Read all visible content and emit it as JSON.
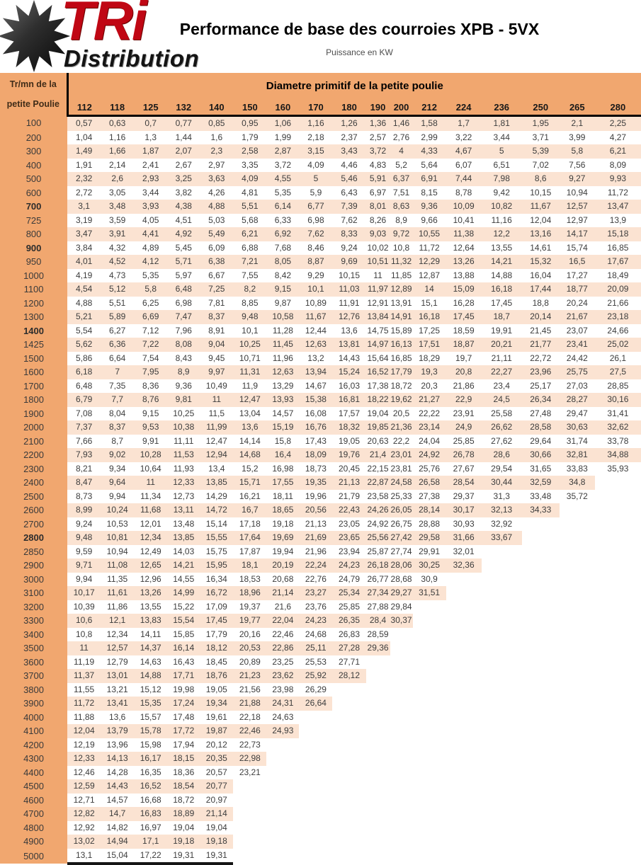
{
  "logo": {
    "brand": "TRi",
    "subtitle": "Distribution"
  },
  "header": {
    "title": "Performance de base des courroies XPB - 5VX",
    "subtitle": "Puissance en KW"
  },
  "colors": {
    "header_orange": "#F1A76F",
    "stripe": "#FBE3D2",
    "logo_red": "#C00714"
  },
  "table": {
    "corner_label_line1": "Tr/mn de la",
    "corner_label_line2": "petite Poulie",
    "group_header": "Diametre primitif  de la petite poulie",
    "columns": [
      "112",
      "118",
      "125",
      "132",
      "140",
      "150",
      "160",
      "170",
      "180",
      "190",
      "200",
      "212",
      "224",
      "236",
      "250",
      "265",
      "280"
    ],
    "rows": [
      {
        "rpm": "100",
        "values": [
          "0,57",
          "0,63",
          "0,7",
          "0,77",
          "0,85",
          "0,95",
          "1,06",
          "1,16",
          "1,26",
          "1,36",
          "1,46",
          "1,58",
          "1,7",
          "1,81",
          "1,95",
          "2,1",
          "2,25"
        ]
      },
      {
        "rpm": "200",
        "values": [
          "1,04",
          "1,16",
          "1,3",
          "1,44",
          "1,6",
          "1,79",
          "1,99",
          "2,18",
          "2,37",
          "2,57",
          "2,76",
          "2,99",
          "3,22",
          "3,44",
          "3,71",
          "3,99",
          "4,27"
        ]
      },
      {
        "rpm": "300",
        "values": [
          "1,49",
          "1,66",
          "1,87",
          "2,07",
          "2,3",
          "2,58",
          "2,87",
          "3,15",
          "3,43",
          "3,72",
          "4",
          "4,33",
          "4,67",
          "5",
          "5,39",
          "5,8",
          "6,21"
        ]
      },
      {
        "rpm": "400",
        "values": [
          "1,91",
          "2,14",
          "2,41",
          "2,67",
          "2,97",
          "3,35",
          "3,72",
          "4,09",
          "4,46",
          "4,83",
          "5,2",
          "5,64",
          "6,07",
          "6,51",
          "7,02",
          "7,56",
          "8,09"
        ]
      },
      {
        "rpm": "500",
        "values": [
          "2,32",
          "2,6",
          "2,93",
          "3,25",
          "3,63",
          "4,09",
          "4,55",
          "5",
          "5,46",
          "5,91",
          "6,37",
          "6,91",
          "7,44",
          "7,98",
          "8,6",
          "9,27",
          "9,93"
        ]
      },
      {
        "rpm": "600",
        "values": [
          "2,72",
          "3,05",
          "3,44",
          "3,82",
          "4,26",
          "4,81",
          "5,35",
          "5,9",
          "6,43",
          "6,97",
          "7,51",
          "8,15",
          "8,78",
          "9,42",
          "10,15",
          "10,94",
          "11,72"
        ]
      },
      {
        "rpm": "700",
        "bold": true,
        "values": [
          "3,1",
          "3,48",
          "3,93",
          "4,38",
          "4,88",
          "5,51",
          "6,14",
          "6,77",
          "7,39",
          "8,01",
          "8,63",
          "9,36",
          "10,09",
          "10,82",
          "11,67",
          "12,57",
          "13,47"
        ]
      },
      {
        "rpm": "725",
        "values": [
          "3,19",
          "3,59",
          "4,05",
          "4,51",
          "5,03",
          "5,68",
          "6,33",
          "6,98",
          "7,62",
          "8,26",
          "8,9",
          "9,66",
          "10,41",
          "11,16",
          "12,04",
          "12,97",
          "13,9"
        ]
      },
      {
        "rpm": "800",
        "values": [
          "3,47",
          "3,91",
          "4,41",
          "4,92",
          "5,49",
          "6,21",
          "6,92",
          "7,62",
          "8,33",
          "9,03",
          "9,72",
          "10,55",
          "11,38",
          "12,2",
          "13,16",
          "14,17",
          "15,18"
        ]
      },
      {
        "rpm": "900",
        "bold": true,
        "values": [
          "3,84",
          "4,32",
          "4,89",
          "5,45",
          "6,09",
          "6,88",
          "7,68",
          "8,46",
          "9,24",
          "10,02",
          "10,8",
          "11,72",
          "12,64",
          "13,55",
          "14,61",
          "15,74",
          "16,85"
        ]
      },
      {
        "rpm": "950",
        "values": [
          "4,01",
          "4,52",
          "4,12",
          "5,71",
          "6,38",
          "7,21",
          "8,05",
          "8,87",
          "9,69",
          "10,51",
          "11,32",
          "12,29",
          "13,26",
          "14,21",
          "15,32",
          "16,5",
          "17,67"
        ]
      },
      {
        "rpm": "1000",
        "values": [
          "4,19",
          "4,73",
          "5,35",
          "5,97",
          "6,67",
          "7,55",
          "8,42",
          "9,29",
          "10,15",
          "11",
          "11,85",
          "12,87",
          "13,88",
          "14,88",
          "16,04",
          "17,27",
          "18,49"
        ]
      },
      {
        "rpm": "1100",
        "values": [
          "4,54",
          "5,12",
          "5,8",
          "6,48",
          "7,25",
          "8,2",
          "9,15",
          "10,1",
          "11,03",
          "11,97",
          "12,89",
          "14",
          "15,09",
          "16,18",
          "17,44",
          "18,77",
          "20,09"
        ]
      },
      {
        "rpm": "1200",
        "values": [
          "4,88",
          "5,51",
          "6,25",
          "6,98",
          "7,81",
          "8,85",
          "9,87",
          "10,89",
          "11,91",
          "12,91",
          "13,91",
          "15,1",
          "16,28",
          "17,45",
          "18,8",
          "20,24",
          "21,66"
        ]
      },
      {
        "rpm": "1300",
        "values": [
          "5,21",
          "5,89",
          "6,69",
          "7,47",
          "8,37",
          "9,48",
          "10,58",
          "11,67",
          "12,76",
          "13,84",
          "14,91",
          "16,18",
          "17,45",
          "18,7",
          "20,14",
          "21,67",
          "23,18"
        ]
      },
      {
        "rpm": "1400",
        "bold": true,
        "values": [
          "5,54",
          "6,27",
          "7,12",
          "7,96",
          "8,91",
          "10,1",
          "11,28",
          "12,44",
          "13,6",
          "14,75",
          "15,89",
          "17,25",
          "18,59",
          "19,91",
          "21,45",
          "23,07",
          "24,66"
        ]
      },
      {
        "rpm": "1425",
        "values": [
          "5,62",
          "6,36",
          "7,22",
          "8,08",
          "9,04",
          "10,25",
          "11,45",
          "12,63",
          "13,81",
          "14,97",
          "16,13",
          "17,51",
          "18,87",
          "20,21",
          "21,77",
          "23,41",
          "25,02"
        ]
      },
      {
        "rpm": "1500",
        "values": [
          "5,86",
          "6,64",
          "7,54",
          "8,43",
          "9,45",
          "10,71",
          "11,96",
          "13,2",
          "14,43",
          "15,64",
          "16,85",
          "18,29",
          "19,7",
          "21,11",
          "22,72",
          "24,42",
          "26,1"
        ]
      },
      {
        "rpm": "1600",
        "values": [
          "6,18",
          "7",
          "7,95",
          "8,9",
          "9,97",
          "11,31",
          "12,63",
          "13,94",
          "15,24",
          "16,52",
          "17,79",
          "19,3",
          "20,8",
          "22,27",
          "23,96",
          "25,75",
          "27,5"
        ]
      },
      {
        "rpm": "1700",
        "values": [
          "6,48",
          "7,35",
          "8,36",
          "9,36",
          "10,49",
          "11,9",
          "13,29",
          "14,67",
          "16,03",
          "17,38",
          "18,72",
          "20,3",
          "21,86",
          "23,4",
          "25,17",
          "27,03",
          "28,85"
        ]
      },
      {
        "rpm": "1800",
        "values": [
          "6,79",
          "7,7",
          "8,76",
          "9,81",
          "11",
          "12,47",
          "13,93",
          "15,38",
          "16,81",
          "18,22",
          "19,62",
          "21,27",
          "22,9",
          "24,5",
          "26,34",
          "28,27",
          "30,16"
        ]
      },
      {
        "rpm": "1900",
        "values": [
          "7,08",
          "8,04",
          "9,15",
          "10,25",
          "11,5",
          "13,04",
          "14,57",
          "16,08",
          "17,57",
          "19,04",
          "20,5",
          "22,22",
          "23,91",
          "25,58",
          "27,48",
          "29,47",
          "31,41"
        ]
      },
      {
        "rpm": "2000",
        "values": [
          "7,37",
          "8,37",
          "9,53",
          "10,38",
          "11,99",
          "13,6",
          "15,19",
          "16,76",
          "18,32",
          "19,85",
          "21,36",
          "23,14",
          "24,9",
          "26,62",
          "28,58",
          "30,63",
          "32,62"
        ]
      },
      {
        "rpm": "2100",
        "values": [
          "7,66",
          "8,7",
          "9,91",
          "11,11",
          "12,47",
          "14,14",
          "15,8",
          "17,43",
          "19,05",
          "20,63",
          "22,2",
          "24,04",
          "25,85",
          "27,62",
          "29,64",
          "31,74",
          "33,78"
        ]
      },
      {
        "rpm": "2200",
        "values": [
          "7,93",
          "9,02",
          "10,28",
          "11,53",
          "12,94",
          "14,68",
          "16,4",
          "18,09",
          "19,76",
          "21,4",
          "23,01",
          "24,92",
          "26,78",
          "28,6",
          "30,66",
          "32,81",
          "34,88"
        ]
      },
      {
        "rpm": "2300",
        "values": [
          "8,21",
          "9,34",
          "10,64",
          "11,93",
          "13,4",
          "15,2",
          "16,98",
          "18,73",
          "20,45",
          "22,15",
          "23,81",
          "25,76",
          "27,67",
          "29,54",
          "31,65",
          "33,83",
          "35,93"
        ]
      },
      {
        "rpm": "2400",
        "values": [
          "8,47",
          "9,64",
          "11",
          "12,33",
          "13,85",
          "15,71",
          "17,55",
          "19,35",
          "21,13",
          "22,87",
          "24,58",
          "26,58",
          "28,54",
          "30,44",
          "32,59",
          "34,8"
        ]
      },
      {
        "rpm": "2500",
        "values": [
          "8,73",
          "9,94",
          "11,34",
          "12,73",
          "14,29",
          "16,21",
          "18,11",
          "19,96",
          "21,79",
          "23,58",
          "25,33",
          "27,38",
          "29,37",
          "31,3",
          "33,48",
          "35,72"
        ]
      },
      {
        "rpm": "2600",
        "values": [
          "8,99",
          "10,24",
          "11,68",
          "13,11",
          "14,72",
          "16,7",
          "18,65",
          "20,56",
          "22,43",
          "24,26",
          "26,05",
          "28,14",
          "30,17",
          "32,13",
          "34,33"
        ]
      },
      {
        "rpm": "2700",
        "values": [
          "9,24",
          "10,53",
          "12,01",
          "13,48",
          "15,14",
          "17,18",
          "19,18",
          "21,13",
          "23,05",
          "24,92",
          "26,75",
          "28,88",
          "30,93",
          "32,92"
        ]
      },
      {
        "rpm": "2800",
        "bold": true,
        "values": [
          "9,48",
          "10,81",
          "12,34",
          "13,85",
          "15,55",
          "17,64",
          "19,69",
          "21,69",
          "23,65",
          "25,56",
          "27,42",
          "29,58",
          "31,66",
          "33,67"
        ]
      },
      {
        "rpm": "2850",
        "values": [
          "9,59",
          "10,94",
          "12,49",
          "14,03",
          "15,75",
          "17,87",
          "19,94",
          "21,96",
          "23,94",
          "25,87",
          "27,74",
          "29,91",
          "32,01"
        ]
      },
      {
        "rpm": "2900",
        "values": [
          "9,71",
          "11,08",
          "12,65",
          "14,21",
          "15,95",
          "18,1",
          "20,19",
          "22,24",
          "24,23",
          "26,18",
          "28,06",
          "30,25",
          "32,36"
        ]
      },
      {
        "rpm": "3000",
        "values": [
          "9,94",
          "11,35",
          "12,96",
          "14,55",
          "16,34",
          "18,53",
          "20,68",
          "22,76",
          "24,79",
          "26,77",
          "28,68",
          "30,9"
        ]
      },
      {
        "rpm": "3100",
        "values": [
          "10,17",
          "11,61",
          "13,26",
          "14,99",
          "16,72",
          "18,96",
          "21,14",
          "23,27",
          "25,34",
          "27,34",
          "29,27",
          "31,51"
        ]
      },
      {
        "rpm": "3200",
        "values": [
          "10,39",
          "11,86",
          "13,55",
          "15,22",
          "17,09",
          "19,37",
          "21,6",
          "23,76",
          "25,85",
          "27,88",
          "29,84"
        ]
      },
      {
        "rpm": "3300",
        "values": [
          "10,6",
          "12,1",
          "13,83",
          "15,54",
          "17,45",
          "19,77",
          "22,04",
          "24,23",
          "26,35",
          "28,4",
          "30,37"
        ]
      },
      {
        "rpm": "3400",
        "values": [
          "10,8",
          "12,34",
          "14,11",
          "15,85",
          "17,79",
          "20,16",
          "22,46",
          "24,68",
          "26,83",
          "28,59"
        ]
      },
      {
        "rpm": "3500",
        "values": [
          "11",
          "12,57",
          "14,37",
          "16,14",
          "18,12",
          "20,53",
          "22,86",
          "25,11",
          "27,28",
          "29,36"
        ]
      },
      {
        "rpm": "3600",
        "values": [
          "11,19",
          "12,79",
          "14,63",
          "16,43",
          "18,45",
          "20,89",
          "23,25",
          "25,53",
          "27,71"
        ]
      },
      {
        "rpm": "3700",
        "values": [
          "11,37",
          "13,01",
          "14,88",
          "17,71",
          "18,76",
          "21,23",
          "23,62",
          "25,92",
          "28,12"
        ]
      },
      {
        "rpm": "3800",
        "values": [
          "11,55",
          "13,21",
          "15,12",
          "19,98",
          "19,05",
          "21,56",
          "23,98",
          "26,29"
        ]
      },
      {
        "rpm": "3900",
        "values": [
          "11,72",
          "13,41",
          "15,35",
          "17,24",
          "19,34",
          "21,88",
          "24,31",
          "26,64"
        ]
      },
      {
        "rpm": "4000",
        "values": [
          "11,88",
          "13,6",
          "15,57",
          "17,48",
          "19,61",
          "22,18",
          "24,63"
        ]
      },
      {
        "rpm": "4100",
        "values": [
          "12,04",
          "13,79",
          "15,78",
          "17,72",
          "19,87",
          "22,46",
          "24,93"
        ]
      },
      {
        "rpm": "4200",
        "values": [
          "12,19",
          "13,96",
          "15,98",
          "17,94",
          "20,12",
          "22,73"
        ]
      },
      {
        "rpm": "4300",
        "values": [
          "12,33",
          "14,13",
          "16,17",
          "18,15",
          "20,35",
          "22,98"
        ]
      },
      {
        "rpm": "4400",
        "values": [
          "12,46",
          "14,28",
          "16,35",
          "18,36",
          "20,57",
          "23,21"
        ]
      },
      {
        "rpm": "4500",
        "values": [
          "12,59",
          "14,43",
          "16,52",
          "18,54",
          "20,77"
        ]
      },
      {
        "rpm": "4600",
        "values": [
          "12,71",
          "14,57",
          "16,68",
          "18,72",
          "20,97"
        ]
      },
      {
        "rpm": "4700",
        "values": [
          "12,82",
          "14,7",
          "16,83",
          "18,89",
          "21,14"
        ]
      },
      {
        "rpm": "4800",
        "values": [
          "12,92",
          "14,82",
          "16,97",
          "19,04",
          "19,04"
        ]
      },
      {
        "rpm": "4900",
        "values": [
          "13,02",
          "14,94",
          "17,1",
          "19,18",
          "19,18"
        ]
      },
      {
        "rpm": "5000",
        "values": [
          "13,1",
          "15,04",
          "17,22",
          "19,31",
          "19,31"
        ]
      }
    ]
  }
}
